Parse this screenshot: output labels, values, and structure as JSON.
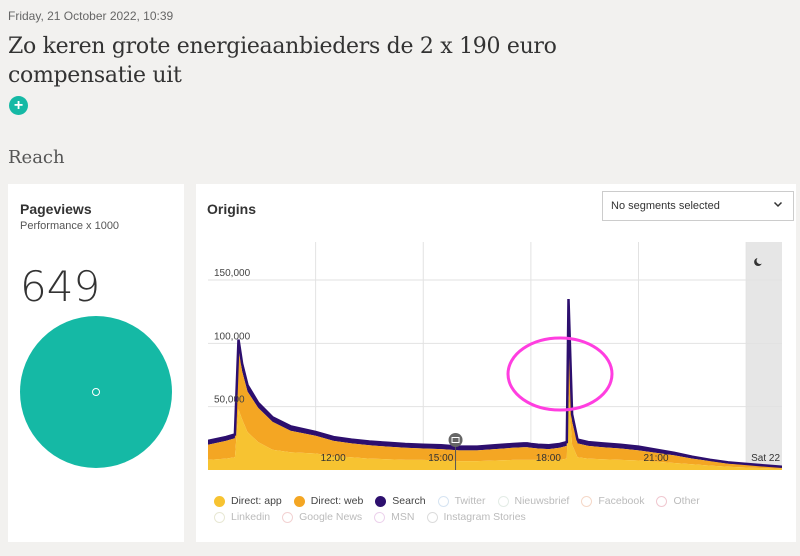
{
  "header": {
    "date": "Friday, 21 October 2022, 10:39",
    "title": "Zo keren grote energieaanbieders de 2 x 190 euro compensatie uit",
    "add_label": "+"
  },
  "section_title": "Reach",
  "pageviews": {
    "title": "Pageviews",
    "subtitle": "Performance x 1000",
    "value": "649",
    "color": "#15b9a5"
  },
  "origins": {
    "title": "Origins",
    "segment_select": "No segments selected",
    "chevron_icon": "chevron-down-icon",
    "night_icon": "moon-icon",
    "marker_icon": "message-icon"
  },
  "chart_data": {
    "type": "area",
    "stacked": true,
    "x_tick_labels": [
      "12:00",
      "15:00",
      "18:00",
      "21:00",
      "Sat 22"
    ],
    "y_tick_labels": [
      "50,000",
      "100,000",
      "150,000"
    ],
    "ylim": [
      0,
      180000
    ],
    "x_hours": [
      9.0,
      9.5,
      9.75,
      9.85,
      9.95,
      10.1,
      10.4,
      10.8,
      11.3,
      12.0,
      12.5,
      13.0,
      13.5,
      14.0,
      14.5,
      15.0,
      15.5,
      16.0,
      16.5,
      17.0,
      17.5,
      17.8,
      17.9,
      18.0,
      18.2,
      18.5,
      18.8,
      19.0,
      19.05,
      19.15,
      19.3,
      19.6,
      20.0,
      20.5,
      21.0,
      21.5,
      22.0,
      22.5,
      23.0,
      23.5,
      24.0,
      24.5,
      25.0
    ],
    "x_ticks_hours": [
      12,
      15,
      18,
      21,
      24
    ],
    "night_start_hour": 24,
    "marker_hour": 15.9,
    "series": [
      {
        "name": "Direct: app",
        "color": "#f7c331",
        "values": [
          8000,
          9000,
          10000,
          48000,
          40000,
          30000,
          22000,
          16000,
          14000,
          13000,
          11000,
          10000,
          9000,
          8500,
          8000,
          8000,
          7500,
          7000,
          7000,
          7500,
          8000,
          8000,
          8000,
          8000,
          8000,
          7500,
          8000,
          9000,
          60000,
          20000,
          10000,
          9000,
          8500,
          8000,
          7500,
          6500,
          5500,
          4500,
          3500,
          2500,
          2000,
          1500,
          1000
        ]
      },
      {
        "name": "Direct: web",
        "color": "#f4a623",
        "values": [
          12000,
          14000,
          15000,
          48000,
          38000,
          32000,
          27000,
          22000,
          17000,
          14000,
          12000,
          11000,
          10500,
          10000,
          9500,
          9000,
          9000,
          8500,
          8500,
          9000,
          9500,
          10000,
          10000,
          9500,
          9000,
          9000,
          9500,
          10000,
          55000,
          18000,
          11000,
          10000,
          9500,
          9000,
          8000,
          7000,
          6000,
          4500,
          3500,
          2500,
          2000,
          1500,
          1000
        ]
      },
      {
        "name": "Search",
        "color": "#2d0f6e",
        "values": [
          3000,
          3000,
          3000,
          7000,
          6000,
          5000,
          4000,
          3500,
          3500,
          3000,
          3000,
          3000,
          3000,
          3000,
          3000,
          3000,
          3000,
          3000,
          3000,
          3000,
          3000,
          3000,
          3000,
          3000,
          3000,
          3000,
          3000,
          3000,
          20000,
          6000,
          3000,
          3000,
          3000,
          3000,
          3000,
          2500,
          2000,
          1500,
          1000,
          1000,
          800,
          600,
          500
        ]
      }
    ],
    "legend": [
      {
        "name": "Direct: app",
        "color": "#f7c331",
        "active": true
      },
      {
        "name": "Direct: web",
        "color": "#f4a623",
        "active": true
      },
      {
        "name": "Search",
        "color": "#2d0f6e",
        "active": true
      },
      {
        "name": "Twitter",
        "color": "#d6e4f2",
        "active": false
      },
      {
        "name": "Nieuwsbrief",
        "color": "#e3ece6",
        "active": false
      },
      {
        "name": "Facebook",
        "color": "#f5d8c8",
        "active": false
      },
      {
        "name": "Other",
        "color": "#f0c8d0",
        "active": false
      },
      {
        "name": "Linkedin",
        "color": "#e8e8d4",
        "active": false
      },
      {
        "name": "Google News",
        "color": "#f2d2d2",
        "active": false
      },
      {
        "name": "MSN",
        "color": "#ecd2ec",
        "active": false
      },
      {
        "name": "Instagram Stories",
        "color": "#dcdcdc",
        "active": false
      }
    ],
    "annotation_color": "#ff3ee0"
  }
}
